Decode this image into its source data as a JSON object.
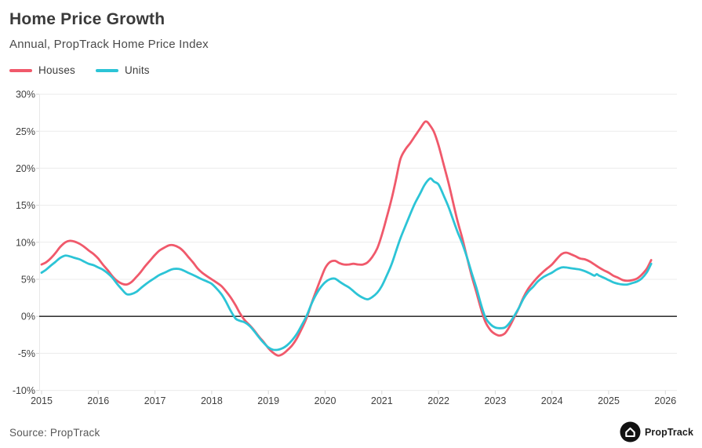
{
  "header": {
    "title": "Home Price Growth",
    "subtitle": "Annual, PropTrack Home Price Index"
  },
  "legend": [
    {
      "label": "Houses",
      "color": "#f0596b"
    },
    {
      "label": "Units",
      "color": "#2cc4d6"
    }
  ],
  "footer": {
    "source": "Source: PropTrack",
    "brand": "PropTrack"
  },
  "colors": {
    "houses": "#f0596b",
    "units": "#2cc4d6",
    "zero_line": "#151515",
    "gridline": "#ececec",
    "axis_tick": "#d6d6d6",
    "axis_text": "#3f3f3f",
    "logo_bg": "#121212"
  },
  "chart_data": {
    "type": "line",
    "title": "Home Price Growth",
    "subtitle": "Annual, PropTrack Home Price Index",
    "xlabel": "",
    "ylabel": "",
    "xlim": [
      2015,
      2026.3
    ],
    "ylim": [
      -10,
      30
    ],
    "grid": "horizontal",
    "legend_position": "top-left",
    "zero_baseline": true,
    "x_ticks": [
      2015,
      2016,
      2017,
      2018,
      2019,
      2020,
      2021,
      2022,
      2023,
      2024,
      2025,
      2026
    ],
    "y_ticks": [
      {
        "label": "30%",
        "value": 30
      },
      {
        "label": "25%",
        "value": 25
      },
      {
        "label": "20%",
        "value": 20
      },
      {
        "label": "15%",
        "value": 15
      },
      {
        "label": "10%",
        "value": 10
      },
      {
        "label": "5%",
        "value": 5
      },
      {
        "label": "0%",
        "value": 0
      },
      {
        "label": "-5%",
        "value": -5
      },
      {
        "label": "-10%",
        "value": -10
      }
    ],
    "series": [
      {
        "name": "Houses",
        "color": "#f0596b",
        "points": [
          [
            2015.0,
            7.0
          ],
          [
            2015.08,
            7.3
          ],
          [
            2015.17,
            7.9
          ],
          [
            2015.25,
            8.6
          ],
          [
            2015.33,
            9.4
          ],
          [
            2015.42,
            10.0
          ],
          [
            2015.5,
            10.2
          ],
          [
            2015.58,
            10.1
          ],
          [
            2015.67,
            9.8
          ],
          [
            2015.75,
            9.4
          ],
          [
            2015.83,
            8.9
          ],
          [
            2015.92,
            8.4
          ],
          [
            2016.0,
            7.8
          ],
          [
            2016.08,
            7.0
          ],
          [
            2016.17,
            6.2
          ],
          [
            2016.25,
            5.4
          ],
          [
            2016.33,
            4.8
          ],
          [
            2016.42,
            4.4
          ],
          [
            2016.5,
            4.3
          ],
          [
            2016.58,
            4.6
          ],
          [
            2016.67,
            5.3
          ],
          [
            2016.75,
            6.0
          ],
          [
            2016.83,
            6.8
          ],
          [
            2016.92,
            7.6
          ],
          [
            2017.0,
            8.3
          ],
          [
            2017.08,
            8.9
          ],
          [
            2017.17,
            9.3
          ],
          [
            2017.25,
            9.6
          ],
          [
            2017.33,
            9.6
          ],
          [
            2017.42,
            9.3
          ],
          [
            2017.5,
            8.8
          ],
          [
            2017.58,
            8.1
          ],
          [
            2017.67,
            7.3
          ],
          [
            2017.75,
            6.5
          ],
          [
            2017.83,
            5.9
          ],
          [
            2017.92,
            5.4
          ],
          [
            2018.0,
            5.0
          ],
          [
            2018.08,
            4.6
          ],
          [
            2018.17,
            4.1
          ],
          [
            2018.25,
            3.4
          ],
          [
            2018.33,
            2.6
          ],
          [
            2018.42,
            1.5
          ],
          [
            2018.5,
            0.4
          ],
          [
            2018.58,
            -0.5
          ],
          [
            2018.67,
            -1.2
          ],
          [
            2018.75,
            -1.9
          ],
          [
            2018.83,
            -2.7
          ],
          [
            2018.92,
            -3.5
          ],
          [
            2019.0,
            -4.3
          ],
          [
            2019.08,
            -4.9
          ],
          [
            2019.17,
            -5.3
          ],
          [
            2019.25,
            -5.1
          ],
          [
            2019.33,
            -4.6
          ],
          [
            2019.42,
            -3.9
          ],
          [
            2019.5,
            -3.0
          ],
          [
            2019.58,
            -1.8
          ],
          [
            2019.67,
            -0.3
          ],
          [
            2019.75,
            1.5
          ],
          [
            2019.83,
            3.2
          ],
          [
            2019.92,
            5.0
          ],
          [
            2020.0,
            6.5
          ],
          [
            2020.08,
            7.3
          ],
          [
            2020.17,
            7.5
          ],
          [
            2020.25,
            7.2
          ],
          [
            2020.33,
            7.0
          ],
          [
            2020.42,
            7.0
          ],
          [
            2020.5,
            7.1
          ],
          [
            2020.58,
            7.0
          ],
          [
            2020.67,
            7.0
          ],
          [
            2020.75,
            7.3
          ],
          [
            2020.83,
            8.0
          ],
          [
            2020.92,
            9.2
          ],
          [
            2021.0,
            11.0
          ],
          [
            2021.08,
            13.2
          ],
          [
            2021.17,
            15.8
          ],
          [
            2021.25,
            18.5
          ],
          [
            2021.33,
            21.3
          ],
          [
            2021.42,
            22.6
          ],
          [
            2021.5,
            23.4
          ],
          [
            2021.58,
            24.3
          ],
          [
            2021.67,
            25.3
          ],
          [
            2021.75,
            26.2
          ],
          [
            2021.79,
            26.3
          ],
          [
            2021.83,
            26.0
          ],
          [
            2021.92,
            24.9
          ],
          [
            2022.0,
            23.1
          ],
          [
            2022.08,
            20.8
          ],
          [
            2022.17,
            18.2
          ],
          [
            2022.25,
            15.6
          ],
          [
            2022.33,
            13.0
          ],
          [
            2022.42,
            10.5
          ],
          [
            2022.5,
            8.0
          ],
          [
            2022.58,
            5.6
          ],
          [
            2022.67,
            3.2
          ],
          [
            2022.75,
            1.0
          ],
          [
            2022.83,
            -0.8
          ],
          [
            2022.92,
            -1.9
          ],
          [
            2023.0,
            -2.4
          ],
          [
            2023.08,
            -2.6
          ],
          [
            2023.17,
            -2.3
          ],
          [
            2023.25,
            -1.4
          ],
          [
            2023.33,
            -0.2
          ],
          [
            2023.42,
            1.2
          ],
          [
            2023.5,
            2.6
          ],
          [
            2023.58,
            3.7
          ],
          [
            2023.67,
            4.6
          ],
          [
            2023.75,
            5.3
          ],
          [
            2023.83,
            5.9
          ],
          [
            2023.92,
            6.5
          ],
          [
            2024.0,
            7.0
          ],
          [
            2024.08,
            7.7
          ],
          [
            2024.17,
            8.4
          ],
          [
            2024.25,
            8.6
          ],
          [
            2024.33,
            8.4
          ],
          [
            2024.42,
            8.1
          ],
          [
            2024.5,
            7.8
          ],
          [
            2024.58,
            7.7
          ],
          [
            2024.67,
            7.4
          ],
          [
            2024.75,
            7.0
          ],
          [
            2024.83,
            6.6
          ],
          [
            2024.92,
            6.2
          ],
          [
            2025.0,
            5.9
          ],
          [
            2025.08,
            5.5
          ],
          [
            2025.17,
            5.2
          ],
          [
            2025.25,
            4.9
          ],
          [
            2025.33,
            4.8
          ],
          [
            2025.42,
            4.9
          ],
          [
            2025.5,
            5.1
          ],
          [
            2025.58,
            5.6
          ],
          [
            2025.67,
            6.4
          ],
          [
            2025.75,
            7.6
          ]
        ]
      },
      {
        "name": "Units",
        "color": "#2cc4d6",
        "points": [
          [
            2015.0,
            5.9
          ],
          [
            2015.08,
            6.3
          ],
          [
            2015.17,
            6.9
          ],
          [
            2015.25,
            7.4
          ],
          [
            2015.33,
            7.9
          ],
          [
            2015.42,
            8.2
          ],
          [
            2015.5,
            8.1
          ],
          [
            2015.58,
            7.9
          ],
          [
            2015.67,
            7.7
          ],
          [
            2015.75,
            7.4
          ],
          [
            2015.83,
            7.1
          ],
          [
            2015.92,
            6.9
          ],
          [
            2016.0,
            6.6
          ],
          [
            2016.08,
            6.3
          ],
          [
            2016.17,
            5.8
          ],
          [
            2016.25,
            5.2
          ],
          [
            2016.33,
            4.4
          ],
          [
            2016.42,
            3.6
          ],
          [
            2016.5,
            3.0
          ],
          [
            2016.58,
            3.0
          ],
          [
            2016.67,
            3.3
          ],
          [
            2016.75,
            3.8
          ],
          [
            2016.83,
            4.3
          ],
          [
            2016.92,
            4.8
          ],
          [
            2017.0,
            5.2
          ],
          [
            2017.08,
            5.6
          ],
          [
            2017.17,
            5.9
          ],
          [
            2017.25,
            6.2
          ],
          [
            2017.33,
            6.4
          ],
          [
            2017.42,
            6.4
          ],
          [
            2017.5,
            6.2
          ],
          [
            2017.58,
            5.9
          ],
          [
            2017.67,
            5.6
          ],
          [
            2017.75,
            5.3
          ],
          [
            2017.83,
            5.0
          ],
          [
            2017.92,
            4.7
          ],
          [
            2018.0,
            4.4
          ],
          [
            2018.08,
            3.8
          ],
          [
            2018.17,
            3.0
          ],
          [
            2018.25,
            2.0
          ],
          [
            2018.33,
            0.8
          ],
          [
            2018.42,
            -0.3
          ],
          [
            2018.5,
            -0.6
          ],
          [
            2018.58,
            -0.8
          ],
          [
            2018.67,
            -1.3
          ],
          [
            2018.75,
            -2.0
          ],
          [
            2018.83,
            -2.8
          ],
          [
            2018.92,
            -3.6
          ],
          [
            2019.0,
            -4.2
          ],
          [
            2019.08,
            -4.5
          ],
          [
            2019.17,
            -4.5
          ],
          [
            2019.25,
            -4.3
          ],
          [
            2019.33,
            -3.9
          ],
          [
            2019.42,
            -3.2
          ],
          [
            2019.5,
            -2.4
          ],
          [
            2019.58,
            -1.3
          ],
          [
            2019.67,
            0.0
          ],
          [
            2019.75,
            1.5
          ],
          [
            2019.83,
            2.8
          ],
          [
            2019.92,
            3.9
          ],
          [
            2020.0,
            4.6
          ],
          [
            2020.08,
            5.0
          ],
          [
            2020.17,
            5.1
          ],
          [
            2020.25,
            4.7
          ],
          [
            2020.33,
            4.3
          ],
          [
            2020.42,
            3.9
          ],
          [
            2020.5,
            3.4
          ],
          [
            2020.58,
            2.9
          ],
          [
            2020.67,
            2.5
          ],
          [
            2020.75,
            2.3
          ],
          [
            2020.83,
            2.6
          ],
          [
            2020.92,
            3.2
          ],
          [
            2021.0,
            4.1
          ],
          [
            2021.08,
            5.4
          ],
          [
            2021.17,
            7.0
          ],
          [
            2021.25,
            8.8
          ],
          [
            2021.33,
            10.6
          ],
          [
            2021.42,
            12.3
          ],
          [
            2021.5,
            13.8
          ],
          [
            2021.58,
            15.2
          ],
          [
            2021.67,
            16.5
          ],
          [
            2021.75,
            17.7
          ],
          [
            2021.83,
            18.5
          ],
          [
            2021.87,
            18.6
          ],
          [
            2021.92,
            18.2
          ],
          [
            2022.0,
            17.8
          ],
          [
            2022.08,
            16.5
          ],
          [
            2022.17,
            14.9
          ],
          [
            2022.25,
            13.2
          ],
          [
            2022.33,
            11.5
          ],
          [
            2022.42,
            9.8
          ],
          [
            2022.5,
            8.0
          ],
          [
            2022.58,
            6.0
          ],
          [
            2022.67,
            3.8
          ],
          [
            2022.75,
            1.6
          ],
          [
            2022.83,
            -0.2
          ],
          [
            2022.92,
            -1.1
          ],
          [
            2023.0,
            -1.5
          ],
          [
            2023.08,
            -1.6
          ],
          [
            2023.17,
            -1.5
          ],
          [
            2023.25,
            -0.9
          ],
          [
            2023.33,
            0.0
          ],
          [
            2023.42,
            1.2
          ],
          [
            2023.5,
            2.4
          ],
          [
            2023.58,
            3.3
          ],
          [
            2023.67,
            4.0
          ],
          [
            2023.75,
            4.7
          ],
          [
            2023.83,
            5.2
          ],
          [
            2023.92,
            5.6
          ],
          [
            2024.0,
            5.9
          ],
          [
            2024.08,
            6.3
          ],
          [
            2024.17,
            6.6
          ],
          [
            2024.25,
            6.6
          ],
          [
            2024.33,
            6.5
          ],
          [
            2024.42,
            6.4
          ],
          [
            2024.5,
            6.3
          ],
          [
            2024.58,
            6.1
          ],
          [
            2024.67,
            5.8
          ],
          [
            2024.75,
            5.5
          ],
          [
            2024.79,
            5.7
          ],
          [
            2024.83,
            5.5
          ],
          [
            2024.92,
            5.2
          ],
          [
            2025.0,
            4.9
          ],
          [
            2025.08,
            4.6
          ],
          [
            2025.17,
            4.4
          ],
          [
            2025.25,
            4.3
          ],
          [
            2025.33,
            4.3
          ],
          [
            2025.42,
            4.5
          ],
          [
            2025.5,
            4.7
          ],
          [
            2025.58,
            5.1
          ],
          [
            2025.67,
            5.9
          ],
          [
            2025.75,
            7.1
          ]
        ]
      }
    ]
  }
}
